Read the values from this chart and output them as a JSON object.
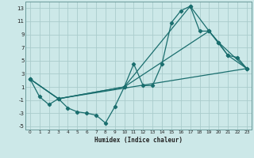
{
  "xlabel": "Humidex (Indice chaleur)",
  "xlim": [
    -0.5,
    23.5
  ],
  "ylim": [
    -5.5,
    14.0
  ],
  "yticks": [
    -5,
    -3,
    -1,
    1,
    3,
    5,
    7,
    9,
    11,
    13
  ],
  "xticks": [
    0,
    1,
    2,
    3,
    4,
    5,
    6,
    7,
    8,
    9,
    10,
    11,
    12,
    13,
    14,
    15,
    16,
    17,
    18,
    19,
    20,
    21,
    22,
    23
  ],
  "bg_color": "#cce8e8",
  "grid_color": "#aacccc",
  "line_color": "#1a6e6e",
  "line1_x": [
    0,
    1,
    2,
    3,
    4,
    5,
    6,
    7,
    8,
    9,
    10,
    11,
    12,
    13,
    14,
    15,
    16,
    17,
    18,
    19,
    20,
    21,
    22,
    23
  ],
  "line1_y": [
    2.2,
    -0.5,
    -1.7,
    -0.8,
    -2.2,
    -2.8,
    -3.0,
    -3.3,
    -4.5,
    -2.0,
    1.0,
    4.5,
    1.2,
    1.2,
    4.5,
    10.8,
    12.6,
    13.3,
    9.5,
    9.5,
    7.8,
    5.8,
    5.5,
    3.8
  ],
  "line2_x": [
    0,
    3,
    23
  ],
  "line2_y": [
    2.2,
    -0.8,
    3.8
  ],
  "line3_x": [
    0,
    3,
    10,
    17,
    19,
    20,
    23
  ],
  "line3_y": [
    2.2,
    -0.8,
    1.0,
    13.3,
    9.5,
    7.8,
    3.8
  ],
  "line4_x": [
    0,
    3,
    10,
    19,
    21,
    23
  ],
  "line4_y": [
    2.2,
    -0.8,
    1.0,
    9.5,
    5.8,
    3.8
  ]
}
